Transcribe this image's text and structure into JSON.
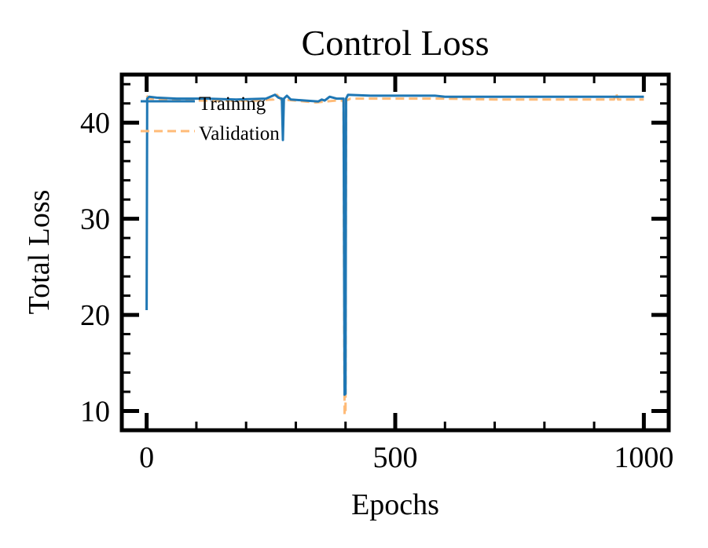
{
  "chart_data": {
    "type": "line",
    "title": "Control Loss",
    "xlabel": "Epochs",
    "ylabel": "Total Loss",
    "xlim": [
      -50,
      1050
    ],
    "ylim": [
      8,
      45
    ],
    "x_ticks": [
      0,
      500,
      1000
    ],
    "x_tick_labels": [
      "0",
      "500",
      "1000"
    ],
    "y_ticks": [
      10,
      20,
      30,
      40
    ],
    "y_tick_labels": [
      "10",
      "20",
      "30",
      "40"
    ],
    "legend_position": "upper-left",
    "grid": false,
    "colors": {
      "training": "#1f77b4",
      "validation": "#ffbb78"
    },
    "series": [
      {
        "name": "Training",
        "style": "solid",
        "points": [
          [
            0,
            20.5
          ],
          [
            1,
            42.5
          ],
          [
            5,
            42.7
          ],
          [
            20,
            42.6
          ],
          [
            60,
            42.5
          ],
          [
            120,
            42.5
          ],
          [
            180,
            42.4
          ],
          [
            240,
            42.5
          ],
          [
            258,
            42.9
          ],
          [
            265,
            42.6
          ],
          [
            272,
            42.5
          ],
          [
            274,
            38.2
          ],
          [
            276,
            42.5
          ],
          [
            282,
            42.8
          ],
          [
            290,
            42.4
          ],
          [
            320,
            42.3
          ],
          [
            345,
            42.2
          ],
          [
            352,
            42.4
          ],
          [
            358,
            42.3
          ],
          [
            368,
            42.7
          ],
          [
            382,
            42.5
          ],
          [
            396,
            42.5
          ],
          [
            398,
            11.7
          ],
          [
            400,
            11.8
          ],
          [
            401,
            42.5
          ],
          [
            405,
            42.9
          ],
          [
            450,
            42.8
          ],
          [
            520,
            42.8
          ],
          [
            580,
            42.8
          ],
          [
            600,
            42.7
          ],
          [
            700,
            42.7
          ],
          [
            800,
            42.7
          ],
          [
            900,
            42.7
          ],
          [
            950,
            42.7
          ],
          [
            1000,
            42.7
          ]
        ]
      },
      {
        "name": "Validation",
        "style": "dashed",
        "points": [
          [
            0,
            42.8
          ],
          [
            5,
            42.5
          ],
          [
            40,
            42.4
          ],
          [
            100,
            42.3
          ],
          [
            160,
            42.3
          ],
          [
            220,
            42.3
          ],
          [
            255,
            42.4
          ],
          [
            262,
            42.9
          ],
          [
            270,
            42.4
          ],
          [
            300,
            42.3
          ],
          [
            340,
            42.1
          ],
          [
            360,
            42.2
          ],
          [
            380,
            42.3
          ],
          [
            394,
            42.3
          ],
          [
            396,
            42.1
          ],
          [
            398,
            9.6
          ],
          [
            400,
            9.8
          ],
          [
            401,
            42.3
          ],
          [
            410,
            42.5
          ],
          [
            500,
            42.5
          ],
          [
            600,
            42.5
          ],
          [
            700,
            42.4
          ],
          [
            800,
            42.4
          ],
          [
            900,
            42.4
          ],
          [
            940,
            42.4
          ],
          [
            944,
            43.1
          ],
          [
            948,
            42.4
          ],
          [
            1000,
            42.4
          ]
        ]
      }
    ]
  }
}
